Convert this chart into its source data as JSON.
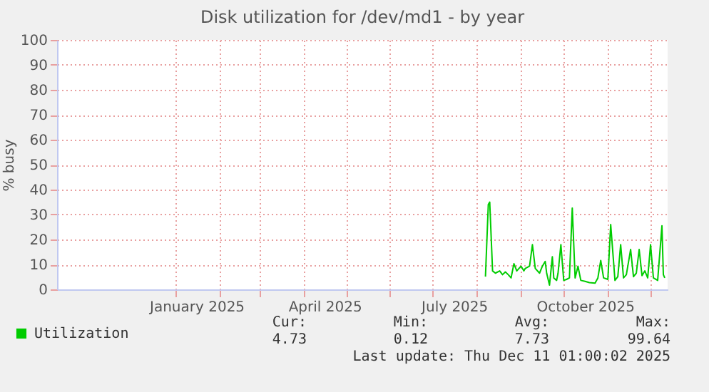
{
  "chart_data": {
    "type": "line",
    "title": "Disk utilization for /dev/md1 - by year",
    "ylabel": "% busy",
    "xlim": [
      "2024-10-10",
      "2025-12-13"
    ],
    "xticks": [
      {
        "value": "2025-01-01",
        "label": null
      },
      {
        "value": "2025-01-16",
        "label": "January 2025"
      },
      {
        "value": "2025-02-01",
        "label": null
      },
      {
        "value": "2025-03-01",
        "label": null
      },
      {
        "value": "2025-04-01",
        "label": null
      },
      {
        "value": "2025-04-16",
        "label": "April 2025"
      },
      {
        "value": "2025-05-01",
        "label": null
      },
      {
        "value": "2025-06-01",
        "label": null
      },
      {
        "value": "2025-07-01",
        "label": null
      },
      {
        "value": "2025-07-16",
        "label": "July 2025"
      },
      {
        "value": "2025-08-01",
        "label": null
      },
      {
        "value": "2025-09-01",
        "label": null
      },
      {
        "value": "2025-10-01",
        "label": null
      },
      {
        "value": "2025-10-16",
        "label": "October 2025"
      },
      {
        "value": "2025-11-01",
        "label": null
      },
      {
        "value": "2025-12-01",
        "label": null
      }
    ],
    "ylim": [
      0,
      100
    ],
    "yticks": [
      0,
      10,
      20,
      30,
      40,
      50,
      60,
      70,
      80,
      90,
      100
    ],
    "grid": true,
    "legend": "bottom",
    "line_style": "solid",
    "marker": "none",
    "series": [
      {
        "name": "Utilization",
        "color": "#00cc00",
        "x": [
          "2025-08-07",
          "2025-08-09",
          "2025-08-10",
          "2025-08-12",
          "2025-08-14",
          "2025-08-17",
          "2025-08-19",
          "2025-08-21",
          "2025-08-23",
          "2025-08-25",
          "2025-08-27",
          "2025-08-29",
          "2025-09-01",
          "2025-09-03",
          "2025-09-04",
          "2025-09-07",
          "2025-09-09",
          "2025-09-11",
          "2025-09-14",
          "2025-09-16",
          "2025-09-18",
          "2025-09-19",
          "2025-09-21",
          "2025-09-23",
          "2025-09-24",
          "2025-09-26",
          "2025-09-27",
          "2025-09-29",
          "2025-10-01",
          "2025-10-03",
          "2025-10-05",
          "2025-10-07",
          "2025-10-09",
          "2025-10-11",
          "2025-10-13",
          "2025-10-16",
          "2025-10-19",
          "2025-10-23",
          "2025-10-25",
          "2025-10-27",
          "2025-10-29",
          "2025-11-01",
          "2025-11-03",
          "2025-11-06",
          "2025-11-08",
          "2025-11-10",
          "2025-11-12",
          "2025-11-14",
          "2025-11-17",
          "2025-11-19",
          "2025-11-21",
          "2025-11-23",
          "2025-11-25",
          "2025-11-27",
          "2025-11-29",
          "2025-12-01",
          "2025-12-03",
          "2025-12-06",
          "2025-12-09",
          "2025-12-10",
          "2025-12-11"
        ],
        "values": [
          5.1,
          34,
          35,
          7.4,
          6.5,
          7.4,
          5.9,
          7,
          5.9,
          4.6,
          10.3,
          7.4,
          9.3,
          7.4,
          8.4,
          9.3,
          17.9,
          8.4,
          6.5,
          9.3,
          11.2,
          6.5,
          1.7,
          13.1,
          4.6,
          3.6,
          6.5,
          17.9,
          3.6,
          4,
          4.6,
          32.6,
          4.6,
          9.3,
          3.6,
          3.2,
          2.7,
          2.5,
          4.6,
          11.6,
          4.6,
          4,
          26,
          3.6,
          5.1,
          17.9,
          4.6,
          5.9,
          16,
          5.1,
          6.5,
          16,
          5.5,
          7.4,
          4.6,
          17.9,
          4.6,
          3.6,
          25.5,
          5.9,
          4.6
        ]
      }
    ],
    "annotations": [
      "Cur:",
      "Min:",
      "Avg:",
      "Max:",
      "4.73",
      "0.12",
      "7.73",
      "99.64",
      "Last update: Thu Dec 11 01:00:02 2025"
    ]
  }
}
